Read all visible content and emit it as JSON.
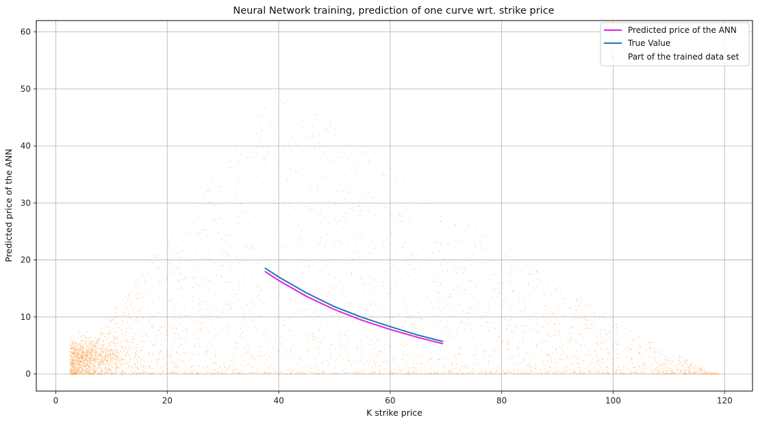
{
  "chart_data": {
    "type": "scatter",
    "title": "Neural Network training, prediction of one curve wrt. strike price",
    "xlabel": "K strike price",
    "ylabel": "Predicted price of the ANN",
    "xlim": [
      -3.5,
      125
    ],
    "ylim": [
      -3,
      62
    ],
    "xticks": [
      0,
      20,
      40,
      60,
      80,
      100,
      120
    ],
    "yticks": [
      0,
      10,
      20,
      30,
      40,
      50,
      60
    ],
    "grid": true,
    "legend_position": "top-right",
    "series": [
      {
        "name": "Predicted price of the ANN",
        "kind": "line",
        "color": "#e020e0",
        "x": [
          37.5,
          40,
          45,
          50,
          55,
          60,
          65,
          69.5
        ],
        "y": [
          18.0,
          16.4,
          13.6,
          11.3,
          9.4,
          7.8,
          6.4,
          5.3
        ]
      },
      {
        "name": "True Value",
        "kind": "line",
        "color": "#1f77b4",
        "x": [
          37.5,
          40,
          45,
          50,
          55,
          60,
          65,
          69.5
        ],
        "y": [
          18.6,
          17.0,
          14.2,
          11.8,
          9.9,
          8.3,
          6.8,
          5.7
        ]
      },
      {
        "name": "Part of the trained data set",
        "kind": "scatter",
        "color": "#ff7f0e",
        "x_range": [
          2.5,
          119
        ],
        "y_range": [
          0,
          58
        ],
        "point_count": 15000
      }
    ]
  }
}
